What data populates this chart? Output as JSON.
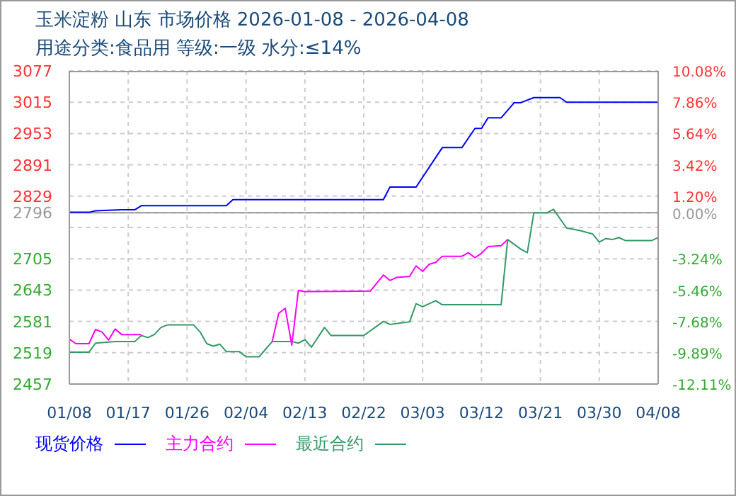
{
  "chart_data": {
    "type": "line",
    "title": "玉米淀粉 山东 市场价格 2026-01-08 - 2026-04-08",
    "subtitle": "用途分类:食品用 等级:一级 水分:≤14%",
    "xlim": [
      "2026-01-08",
      "2026-04-08"
    ],
    "xticks": [
      {
        "value": "2026-01-08",
        "label": "01/08"
      },
      {
        "value": "2026-01-17",
        "label": "01/17"
      },
      {
        "value": "2026-01-26",
        "label": "01/26"
      },
      {
        "value": "2026-02-04",
        "label": "02/04"
      },
      {
        "value": "2026-02-13",
        "label": "02/13"
      },
      {
        "value": "2026-02-22",
        "label": "02/22"
      },
      {
        "value": "2026-03-03",
        "label": "03/03"
      },
      {
        "value": "2026-03-12",
        "label": "03/12"
      },
      {
        "value": "2026-03-21",
        "label": "03/21"
      },
      {
        "value": "2026-03-30",
        "label": "03/30"
      },
      {
        "value": "2026-04-08",
        "label": "04/08"
      }
    ],
    "ylim": [
      2457,
      3077
    ],
    "yticks": [
      2457,
      2519,
      2581,
      2643,
      2705,
      {
        "value": 2767,
        "label": null
      },
      2796,
      2829,
      2891,
      2953,
      3015,
      3077
    ],
    "y2lim": [
      -12.11,
      10.08
    ],
    "y2ticks": [
      {
        "value": -12.11,
        "label": "-12.11%"
      },
      {
        "value": -9.89,
        "label": "-9.89%"
      },
      {
        "value": -7.68,
        "label": "-7.68%"
      },
      {
        "value": -5.46,
        "label": "-5.46%"
      },
      {
        "value": -3.24,
        "label": "-3.24%"
      },
      {
        "value": 0,
        "label": "0.00%"
      },
      {
        "value": 1.2,
        "label": "1.20%"
      },
      {
        "value": 3.42,
        "label": "3.42%"
      },
      {
        "value": 5.64,
        "label": "5.64%"
      },
      {
        "value": 7.86,
        "label": "7.86%"
      },
      {
        "value": 10.08,
        "label": "10.08%"
      }
    ],
    "ref_lines": [
      {
        "axis": "y",
        "value": 2796,
        "color": "#999999",
        "line_style": "solid"
      }
    ],
    "grid": true,
    "legend": "bottom",
    "marker": "none",
    "line_style": "solid",
    "series": [
      {
        "name": "现货价格",
        "color": "#0000ff",
        "x": [
          "2026-01-08",
          "2026-01-11",
          "2026-01-12",
          "2026-01-16",
          "2026-01-18",
          "2026-01-19",
          "2026-02-01",
          "2026-02-02",
          "2026-02-25",
          "2026-02-26",
          "2026-03-02",
          "2026-03-06",
          "2026-03-09",
          "2026-03-11",
          "2026-03-12",
          "2026-03-13",
          "2026-03-15",
          "2026-03-17",
          "2026-03-18",
          "2026-03-20",
          "2026-03-24",
          "2026-03-25",
          "2026-04-08"
        ],
        "values": [
          2797,
          2797,
          2800,
          2802,
          2802,
          2810,
          2810,
          2822,
          2822,
          2847,
          2847,
          2925,
          2925,
          2963,
          2963,
          2984,
          2984,
          3014,
          3014,
          3024,
          3024,
          3015,
          3015
        ]
      },
      {
        "name": "主力合约",
        "color": "#ff00ff",
        "x": [
          "2026-01-08",
          "2026-01-09",
          "2026-01-11",
          "2026-01-12",
          "2026-01-13",
          "2026-01-14",
          "2026-01-15",
          "2026-01-16",
          "2026-01-19",
          "2026-01-28",
          "2026-02-08",
          "2026-02-09",
          "2026-02-10",
          "2026-02-11",
          "2026-02-12",
          "2026-02-13",
          "2026-02-23",
          "2026-02-25",
          "2026-02-26",
          "2026-02-27",
          "2026-03-01",
          "2026-03-02",
          "2026-03-03",
          "2026-03-04",
          "2026-03-05",
          "2026-03-06",
          "2026-03-09",
          "2026-03-10",
          "2026-03-11",
          "2026-03-12",
          "2026-03-13",
          "2026-03-15",
          "2026-03-16"
        ],
        "values": [
          2546,
          2537,
          2537,
          2565,
          2560,
          2544,
          2566,
          2555,
          2555,
          null,
          2541,
          2597,
          2607,
          2534,
          2642,
          2640,
          2641,
          2673,
          2662,
          2668,
          2670,
          2691,
          2680,
          2694,
          2698,
          2710,
          2710,
          2717,
          2707,
          2716,
          2729,
          2731,
          2743
        ]
      },
      {
        "name": "最近合约",
        "color": "#339966",
        "x": [
          "2026-01-08",
          "2026-01-11",
          "2026-01-12",
          "2026-01-15",
          "2026-01-18",
          "2026-01-19",
          "2026-01-20",
          "2026-01-21",
          "2026-01-22",
          "2026-01-23",
          "2026-01-27",
          "2026-01-28",
          "2026-01-29",
          "2026-01-30",
          "2026-01-31",
          "2026-02-01",
          "2026-02-03",
          "2026-02-04",
          "2026-02-06",
          "2026-02-08",
          "2026-02-11",
          "2026-02-12",
          "2026-02-13",
          "2026-02-14",
          "2026-02-16",
          "2026-02-17",
          "2026-02-22",
          "2026-02-25",
          "2026-02-26",
          "2026-03-01",
          "2026-03-02",
          "2026-03-03",
          "2026-03-05",
          "2026-03-06",
          "2026-03-15",
          "2026-03-16",
          "2026-03-18",
          "2026-03-19",
          "2026-03-20",
          "2026-03-22",
          "2026-03-23",
          "2026-03-25",
          "2026-03-27",
          "2026-03-29",
          "2026-03-30",
          "2026-03-31",
          "2026-04-01",
          "2026-04-02",
          "2026-04-03",
          "2026-04-07",
          "2026-04-08"
        ],
        "values": [
          2520,
          2520,
          2538,
          2541,
          2541,
          2553,
          2549,
          2555,
          2569,
          2574,
          2574,
          2560,
          2537,
          2532,
          2536,
          2521,
          2521,
          2511,
          2511,
          2541,
          2541,
          2538,
          2545,
          2530,
          2569,
          2553,
          2553,
          2581,
          2575,
          2580,
          2616,
          2610,
          2622,
          2614,
          2614,
          2743,
          2724,
          2717,
          2796,
          2796,
          2803,
          2766,
          2761,
          2754,
          2738,
          2745,
          2743,
          2747,
          2741,
          2741,
          2747
        ]
      }
    ]
  }
}
